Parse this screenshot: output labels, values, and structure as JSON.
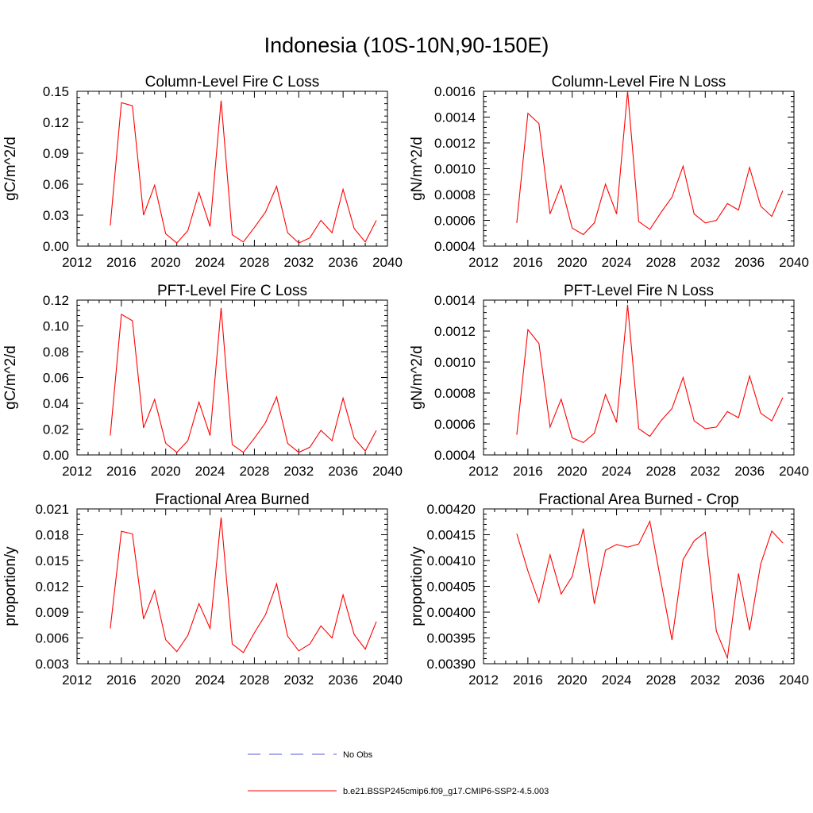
{
  "figure_title": "Indonesia (10S-10N,90-150E)",
  "legend": {
    "items": [
      {
        "label": "No Obs",
        "color": "#5a5ad6",
        "style": "dashed"
      },
      {
        "label": "b.e21.BSSP245cmip6.f09_g17.CMIP6-SSP2-4.5.003",
        "color": "#ff0000",
        "style": "solid"
      }
    ]
  },
  "chart_data": [
    {
      "type": "line",
      "title": "Column-Level Fire C Loss",
      "xlabel": "",
      "ylabel": "gC/m^2/d",
      "xlim": [
        2012,
        2040
      ],
      "ylim": [
        0,
        0.15
      ],
      "xticks": [
        "2012",
        "2016",
        "2020",
        "2024",
        "2028",
        "2032",
        "2036",
        "2040"
      ],
      "yticks": [
        "0.00",
        "0.03",
        "0.06",
        "0.09",
        "0.12",
        "0.15"
      ],
      "x": [
        2015,
        2016,
        2017,
        2018,
        2019,
        2020,
        2021,
        2022,
        2023,
        2024,
        2025,
        2026,
        2027,
        2028,
        2029,
        2030,
        2031,
        2032,
        2033,
        2034,
        2035,
        2036,
        2037,
        2038,
        2039
      ],
      "series": [
        {
          "name": "b.e21.BSSP245cmip6.f09_g17.CMIP6-SSP2-4.5.003",
          "color": "#ff0000",
          "values": [
            0.02,
            0.139,
            0.136,
            0.03,
            0.059,
            0.012,
            0.003,
            0.015,
            0.052,
            0.019,
            0.141,
            0.011,
            0.004,
            0.018,
            0.033,
            0.058,
            0.013,
            0.003,
            0.008,
            0.025,
            0.013,
            0.055,
            0.017,
            0.004,
            0.025
          ]
        }
      ]
    },
    {
      "type": "line",
      "title": "Column-Level Fire N Loss",
      "xlabel": "",
      "ylabel": "gN/m^2/d",
      "xlim": [
        2012,
        2040
      ],
      "ylim": [
        0.0004,
        0.0016
      ],
      "xticks": [
        "2012",
        "2016",
        "2020",
        "2024",
        "2028",
        "2032",
        "2036",
        "2040"
      ],
      "yticks": [
        "0.0004",
        "0.0006",
        "0.0008",
        "0.0010",
        "0.0012",
        "0.0014",
        "0.0016"
      ],
      "x": [
        2015,
        2016,
        2017,
        2018,
        2019,
        2020,
        2021,
        2022,
        2023,
        2024,
        2025,
        2026,
        2027,
        2028,
        2029,
        2030,
        2031,
        2032,
        2033,
        2034,
        2035,
        2036,
        2037,
        2038,
        2039
      ],
      "series": [
        {
          "name": "b.e21.BSSP245cmip6.f09_g17.CMIP6-SSP2-4.5.003",
          "color": "#ff0000",
          "values": [
            0.00058,
            0.00143,
            0.00135,
            0.00065,
            0.00087,
            0.00054,
            0.00049,
            0.00058,
            0.00088,
            0.00065,
            0.0016,
            0.00059,
            0.00053,
            0.00066,
            0.00078,
            0.00102,
            0.00065,
            0.00058,
            0.0006,
            0.00073,
            0.00068,
            0.00101,
            0.00071,
            0.00063,
            0.00083
          ]
        }
      ]
    },
    {
      "type": "line",
      "title": "PFT-Level Fire C Loss",
      "xlabel": "",
      "ylabel": "gC/m^2/d",
      "xlim": [
        2012,
        2040
      ],
      "ylim": [
        0,
        0.12
      ],
      "xticks": [
        "2012",
        "2016",
        "2020",
        "2024",
        "2028",
        "2032",
        "2036",
        "2040"
      ],
      "yticks": [
        "0.00",
        "0.02",
        "0.04",
        "0.06",
        "0.08",
        "0.10",
        "0.12"
      ],
      "x": [
        2015,
        2016,
        2017,
        2018,
        2019,
        2020,
        2021,
        2022,
        2023,
        2024,
        2025,
        2026,
        2027,
        2028,
        2029,
        2030,
        2031,
        2032,
        2033,
        2034,
        2035,
        2036,
        2037,
        2038,
        2039
      ],
      "series": [
        {
          "name": "b.e21.BSSP245cmip6.f09_g17.CMIP6-SSP2-4.5.003",
          "color": "#ff0000",
          "values": [
            0.015,
            0.109,
            0.104,
            0.021,
            0.043,
            0.009,
            0.002,
            0.011,
            0.041,
            0.015,
            0.114,
            0.008,
            0.002,
            0.013,
            0.025,
            0.045,
            0.009,
            0.002,
            0.006,
            0.019,
            0.011,
            0.044,
            0.013,
            0.003,
            0.019
          ]
        }
      ]
    },
    {
      "type": "line",
      "title": "PFT-Level Fire N Loss",
      "xlabel": "",
      "ylabel": "gN/m^2/d",
      "xlim": [
        2012,
        2040
      ],
      "ylim": [
        0.0004,
        0.0014
      ],
      "xticks": [
        "2012",
        "2016",
        "2020",
        "2024",
        "2028",
        "2032",
        "2036",
        "2040"
      ],
      "yticks": [
        "0.0004",
        "0.0006",
        "0.0008",
        "0.0010",
        "0.0012",
        "0.0014"
      ],
      "x": [
        2015,
        2016,
        2017,
        2018,
        2019,
        2020,
        2021,
        2022,
        2023,
        2024,
        2025,
        2026,
        2027,
        2028,
        2029,
        2030,
        2031,
        2032,
        2033,
        2034,
        2035,
        2036,
        2037,
        2038,
        2039
      ],
      "series": [
        {
          "name": "b.e21.BSSP245cmip6.f09_g17.CMIP6-SSP2-4.5.003",
          "color": "#ff0000",
          "values": [
            0.00053,
            0.00121,
            0.00112,
            0.00058,
            0.00076,
            0.00051,
            0.00048,
            0.00054,
            0.00079,
            0.00061,
            0.00137,
            0.00057,
            0.00052,
            0.00062,
            0.0007,
            0.0009,
            0.00062,
            0.00057,
            0.00058,
            0.00068,
            0.00064,
            0.00091,
            0.00067,
            0.00062,
            0.00077
          ]
        }
      ]
    },
    {
      "type": "line",
      "title": "Fractional Area Burned",
      "xlabel": "",
      "ylabel": "proportion/y",
      "xlim": [
        2012,
        2040
      ],
      "ylim": [
        0.003,
        0.021
      ],
      "xticks": [
        "2012",
        "2016",
        "2020",
        "2024",
        "2028",
        "2032",
        "2036",
        "2040"
      ],
      "yticks": [
        "0.003",
        "0.006",
        "0.009",
        "0.012",
        "0.015",
        "0.018",
        "0.021"
      ],
      "x": [
        2015,
        2016,
        2017,
        2018,
        2019,
        2020,
        2021,
        2022,
        2023,
        2024,
        2025,
        2026,
        2027,
        2028,
        2029,
        2030,
        2031,
        2032,
        2033,
        2034,
        2035,
        2036,
        2037,
        2038,
        2039
      ],
      "series": [
        {
          "name": "b.e21.BSSP245cmip6.f09_g17.CMIP6-SSP2-4.5.003",
          "color": "#ff0000",
          "values": [
            0.0071,
            0.0184,
            0.0181,
            0.0082,
            0.0115,
            0.0058,
            0.0044,
            0.0063,
            0.01,
            0.0071,
            0.02,
            0.0053,
            0.0043,
            0.0066,
            0.0087,
            0.0123,
            0.0062,
            0.0045,
            0.0053,
            0.0074,
            0.006,
            0.011,
            0.0064,
            0.0047,
            0.0079
          ]
        }
      ]
    },
    {
      "type": "line",
      "title": "Fractional Area Burned - Crop",
      "xlabel": "",
      "ylabel": "proportion/y",
      "xlim": [
        2012,
        2040
      ],
      "ylim": [
        0.0039,
        0.0042
      ],
      "xticks": [
        "2012",
        "2016",
        "2020",
        "2024",
        "2028",
        "2032",
        "2036",
        "2040"
      ],
      "yticks": [
        "0.00390",
        "0.00395",
        "0.00400",
        "0.00405",
        "0.00410",
        "0.00415",
        "0.00420"
      ],
      "x": [
        2015,
        2016,
        2017,
        2018,
        2019,
        2020,
        2021,
        2022,
        2023,
        2024,
        2025,
        2026,
        2027,
        2028,
        2029,
        2030,
        2031,
        2032,
        2033,
        2034,
        2035,
        2036,
        2037,
        2038,
        2039
      ],
      "series": [
        {
          "name": "b.e21.BSSP245cmip6.f09_g17.CMIP6-SSP2-4.5.003",
          "color": "#ff0000",
          "values": [
            0.004152,
            0.00408,
            0.004019,
            0.004111,
            0.004035,
            0.004069,
            0.004162,
            0.004016,
            0.00412,
            0.004131,
            0.004126,
            0.004132,
            0.004176,
            0.00406,
            0.003946,
            0.004102,
            0.004138,
            0.004155,
            0.003963,
            0.003911,
            0.004075,
            0.003965,
            0.004093,
            0.004157,
            0.004134
          ]
        }
      ]
    }
  ]
}
